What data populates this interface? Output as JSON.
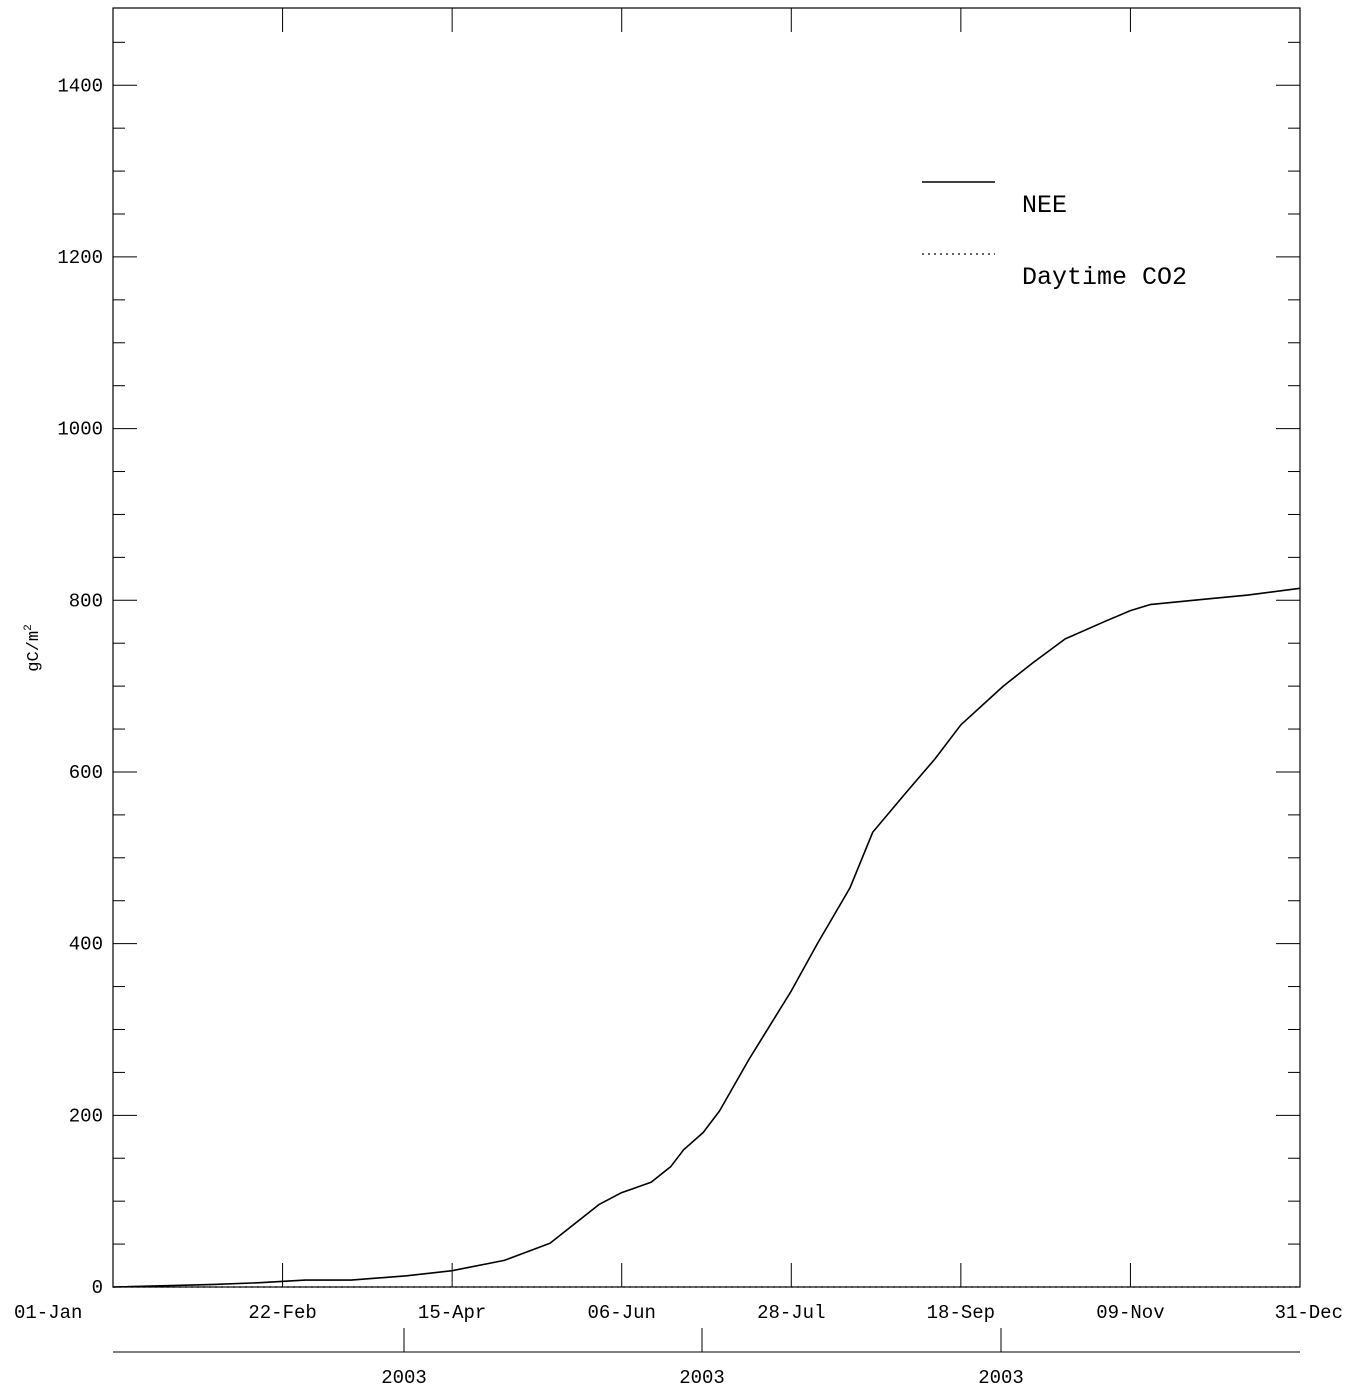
{
  "chart_data": {
    "type": "line",
    "title": "",
    "xlabel": "",
    "ylabel": "gC/m",
    "ylabel_superscript": "2",
    "xlim": [
      "01-Jan",
      "31-Dec"
    ],
    "ylim": [
      0,
      1490
    ],
    "y_ticks": [
      0,
      200,
      400,
      600,
      800,
      1000,
      1200,
      1400
    ],
    "y_tick_labels": [
      "0",
      "200",
      "400",
      "600",
      "800",
      "1000",
      "1200",
      "1400"
    ],
    "x_tick_labels": [
      "01-Jan",
      "22-Feb",
      "15-Apr",
      "06-Jun",
      "28-Jul",
      "18-Sep",
      "09-Nov",
      "31-Dec"
    ],
    "year_labels": [
      "2003",
      "2003",
      "2003"
    ],
    "grid": false,
    "legend_position": "top-right",
    "series": [
      {
        "name": "NEE",
        "style": "solid",
        "color": "#000000",
        "x": [
          "01-Jan",
          "01-Feb",
          "15-Feb",
          "01-Mar",
          "15-Mar",
          "01-Apr",
          "15-Apr",
          "01-May",
          "15-May",
          "22-May",
          "30-May",
          "06-Jun",
          "15-Jun",
          "21-Jun",
          "25-Jun",
          "01-Jul",
          "06-Jul",
          "15-Jul",
          "28-Jul",
          "05-Aug",
          "15-Aug",
          "22-Aug",
          "01-Sep",
          "10-Sep",
          "18-Sep",
          "01-Oct",
          "10-Oct",
          "20-Oct",
          "01-Nov",
          "09-Nov",
          "15-Nov",
          "01-Dec",
          "15-Dec",
          "31-Dec"
        ],
        "y": [
          0,
          3,
          5,
          8,
          8,
          13,
          19,
          31,
          51,
          72,
          96,
          110,
          122,
          140,
          160,
          180,
          205,
          265,
          345,
          400,
          465,
          530,
          575,
          615,
          655,
          700,
          727,
          755,
          775,
          788,
          795,
          801,
          806,
          814
        ]
      },
      {
        "name": "Daytime CO2",
        "style": "dotted",
        "color": "#000000",
        "x": [
          "01-Jan",
          "31-Dec"
        ],
        "y": [
          0,
          0
        ]
      }
    ]
  }
}
